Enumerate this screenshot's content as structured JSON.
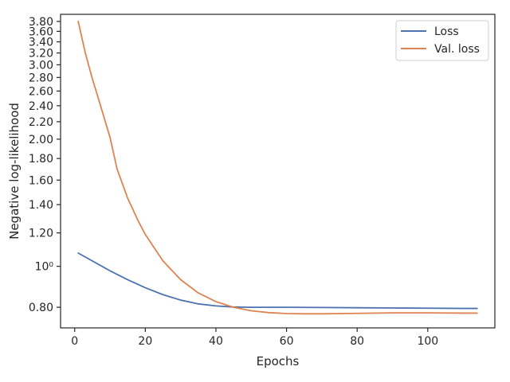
{
  "chart_data": {
    "type": "line",
    "xlabel": "Epochs",
    "ylabel": "Negative log-likelihood",
    "xlim": [
      -4,
      119
    ],
    "ylim": [
      0.715,
      3.95
    ],
    "yscale": "log",
    "x_ticks": [
      {
        "value": 0,
        "label": "0"
      },
      {
        "value": 20,
        "label": "20"
      },
      {
        "value": 40,
        "label": "40"
      },
      {
        "value": 60,
        "label": "60"
      },
      {
        "value": 80,
        "label": "80"
      },
      {
        "value": 100,
        "label": "100"
      }
    ],
    "y_ticks": [
      {
        "value": 0.8,
        "label": "0.80"
      },
      {
        "value": 1.0,
        "label": "10⁰"
      },
      {
        "value": 1.2,
        "label": "1.20"
      },
      {
        "value": 1.4,
        "label": "1.40"
      },
      {
        "value": 1.6,
        "label": "1.60"
      },
      {
        "value": 1.8,
        "label": "1.80"
      },
      {
        "value": 2.0,
        "label": "2.00"
      },
      {
        "value": 2.2,
        "label": "2.20"
      },
      {
        "value": 2.4,
        "label": "2.40"
      },
      {
        "value": 2.6,
        "label": "2.60"
      },
      {
        "value": 2.8,
        "label": "2.80"
      },
      {
        "value": 3.0,
        "label": "3.00"
      },
      {
        "value": 3.2,
        "label": "3.20"
      },
      {
        "value": 3.4,
        "label": "3.40"
      },
      {
        "value": 3.6,
        "label": "3.60"
      },
      {
        "value": 3.8,
        "label": "3.80"
      }
    ],
    "grid": false,
    "legend_position": "top-right",
    "series": [
      {
        "name": "Loss",
        "color": "#4c72b0",
        "x": [
          1,
          5,
          10,
          15,
          20,
          25,
          30,
          35,
          40,
          45,
          50,
          60,
          70,
          80,
          90,
          100,
          110,
          114
        ],
        "y": [
          1.075,
          1.03,
          0.976,
          0.93,
          0.89,
          0.857,
          0.832,
          0.815,
          0.806,
          0.801,
          0.8,
          0.8,
          0.799,
          0.798,
          0.797,
          0.796,
          0.795,
          0.795
        ]
      },
      {
        "name": "Val. loss",
        "color": "#dd8452",
        "x": [
          1,
          3,
          5,
          7,
          10,
          12,
          15,
          18,
          20,
          25,
          30,
          35,
          40,
          45,
          50,
          55,
          60,
          65,
          70,
          80,
          90,
          100,
          110,
          114
        ],
        "y": [
          3.8,
          3.2,
          2.78,
          2.45,
          2.02,
          1.7,
          1.45,
          1.28,
          1.19,
          1.03,
          0.93,
          0.865,
          0.825,
          0.8,
          0.785,
          0.777,
          0.773,
          0.772,
          0.772,
          0.774,
          0.776,
          0.776,
          0.775,
          0.775
        ]
      }
    ]
  }
}
